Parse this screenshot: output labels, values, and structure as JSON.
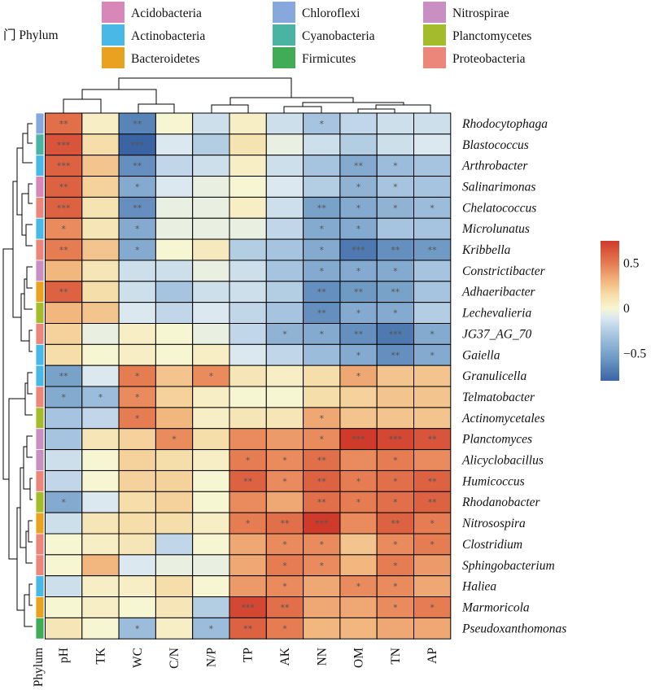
{
  "legend": {
    "title": "门 Phylum",
    "items": [
      {
        "label": "Acidobacteria",
        "color": "#d986b9"
      },
      {
        "label": "Actinobacteria",
        "color": "#48b9e6"
      },
      {
        "label": "Bacteroidetes",
        "color": "#e8a21f"
      },
      {
        "label": "Chloroflexi",
        "color": "#86a8dc"
      },
      {
        "label": "Cyanobacteria",
        "color": "#4bb3a2"
      },
      {
        "label": "Firmicutes",
        "color": "#42ab55"
      },
      {
        "label": "Nitrospirae",
        "color": "#c98fc0"
      },
      {
        "label": "Planctomycetes",
        "color": "#a4bc2b"
      },
      {
        "label": "Proteobacteria",
        "color": "#ec867b"
      }
    ]
  },
  "chart_data": {
    "type": "heatmap",
    "columns": [
      "pH",
      "TK",
      "WC",
      "C/N",
      "N/P",
      "TP",
      "AK",
      "NN",
      "OM",
      "TN",
      "AP"
    ],
    "annotation_column_label": "Phylum",
    "rows": [
      {
        "name": "Rhodocytophaga",
        "phylum": "Chloroflexi",
        "values": [
          0.55,
          0.05,
          -0.65,
          0.0,
          -0.15,
          0.05,
          -0.15,
          -0.3,
          -0.2,
          -0.15,
          -0.15
        ],
        "stars": [
          "**",
          "",
          "**",
          "",
          "",
          "",
          "",
          "*",
          "",
          "",
          ""
        ]
      },
      {
        "name": "Blastococcus",
        "phylum": "Cyanobacteria",
        "values": [
          0.65,
          0.15,
          -0.8,
          -0.1,
          -0.25,
          0.12,
          -0.05,
          -0.15,
          -0.25,
          -0.15,
          -0.1
        ],
        "stars": [
          "***",
          "",
          "***",
          "",
          "",
          "",
          "",
          "",
          "",
          "",
          ""
        ]
      },
      {
        "name": "Arthrobacter",
        "phylum": "Actinobacteria",
        "values": [
          0.6,
          0.25,
          -0.6,
          -0.2,
          -0.15,
          0.05,
          -0.15,
          -0.3,
          -0.45,
          -0.35,
          -0.3
        ],
        "stars": [
          "***",
          "",
          "**",
          "",
          "",
          "",
          "",
          "",
          "**",
          "*",
          ""
        ]
      },
      {
        "name": "Salinarimonas",
        "phylum": "Acidobacteria",
        "values": [
          0.6,
          0.2,
          -0.45,
          -0.1,
          -0.05,
          0.0,
          -0.1,
          -0.25,
          -0.4,
          -0.3,
          -0.3
        ],
        "stars": [
          "**",
          "",
          "*",
          "",
          "",
          "",
          "",
          "",
          "*",
          "*",
          ""
        ]
      },
      {
        "name": "Chelatococcus",
        "phylum": "Proteobacteria",
        "values": [
          0.6,
          0.12,
          -0.6,
          -0.05,
          -0.05,
          0.05,
          -0.15,
          -0.5,
          -0.45,
          -0.4,
          -0.35
        ],
        "stars": [
          "***",
          "",
          "**",
          "",
          "",
          "",
          "",
          "**",
          "*",
          "*",
          "*"
        ]
      },
      {
        "name": "Microlunatus",
        "phylum": "Actinobacteria",
        "values": [
          0.45,
          0.1,
          -0.45,
          -0.05,
          -0.05,
          -0.05,
          -0.2,
          -0.45,
          -0.45,
          -0.3,
          -0.3
        ],
        "stars": [
          "*",
          "",
          "*",
          "",
          "",
          "",
          "",
          "*",
          "*",
          "",
          ""
        ]
      },
      {
        "name": "Kribbella",
        "phylum": "Proteobacteria",
        "values": [
          0.5,
          0.25,
          -0.45,
          0.0,
          0.08,
          -0.25,
          -0.3,
          -0.45,
          -0.7,
          -0.6,
          -0.55
        ],
        "stars": [
          "**",
          "",
          "*",
          "",
          "",
          "",
          "",
          "*",
          "***",
          "**",
          "**"
        ]
      },
      {
        "name": "Constrictibacter",
        "phylum": "Nitrospirae",
        "values": [
          0.3,
          0.1,
          -0.15,
          -0.15,
          -0.05,
          -0.15,
          -0.3,
          -0.45,
          -0.45,
          -0.45,
          -0.3
        ],
        "stars": [
          "",
          "",
          "",
          "",
          "",
          "",
          "",
          "*",
          "*",
          "*",
          ""
        ]
      },
      {
        "name": "Adhaeribacter",
        "phylum": "Bacteroidetes",
        "values": [
          0.6,
          0.15,
          -0.15,
          -0.3,
          -0.15,
          -0.15,
          -0.25,
          -0.6,
          -0.55,
          -0.5,
          -0.3
        ],
        "stars": [
          "**",
          "",
          "",
          "",
          "",
          "",
          "",
          "**",
          "**",
          "**",
          ""
        ]
      },
      {
        "name": "Lechevalieria",
        "phylum": "Planctomycetes",
        "values": [
          0.3,
          0.25,
          -0.1,
          -0.2,
          -0.1,
          -0.2,
          -0.3,
          -0.6,
          -0.45,
          -0.45,
          -0.25
        ],
        "stars": [
          "",
          "",
          "",
          "",
          "",
          "",
          "",
          "**",
          "*",
          "*",
          ""
        ]
      },
      {
        "name": "JG37_AG_70",
        "phylum": "Proteobacteria",
        "values": [
          0.2,
          -0.05,
          0.05,
          0.0,
          -0.05,
          -0.2,
          -0.4,
          -0.45,
          -0.6,
          -0.7,
          -0.45
        ],
        "stars": [
          "",
          "",
          "",
          "",
          "",
          "",
          "*",
          "*",
          "**",
          "***",
          "*"
        ]
      },
      {
        "name": "Gaiella",
        "phylum": "Actinobacteria",
        "values": [
          0.15,
          0.0,
          0.05,
          0.0,
          0.05,
          -0.1,
          -0.2,
          -0.35,
          -0.45,
          -0.6,
          -0.45
        ],
        "stars": [
          "",
          "",
          "",
          "",
          "",
          "",
          "",
          "",
          "*",
          "**",
          "*"
        ]
      },
      {
        "name": "Granulicella",
        "phylum": "Actinobacteria",
        "values": [
          -0.5,
          -0.1,
          0.5,
          0.25,
          0.45,
          0.1,
          0.05,
          0.15,
          0.35,
          0.25,
          0.25
        ],
        "stars": [
          "**",
          "",
          "*",
          "",
          "*",
          "",
          "",
          "",
          "*",
          "",
          ""
        ]
      },
      {
        "name": "Telmatobacter",
        "phylum": "Proteobacteria",
        "values": [
          -0.45,
          -0.35,
          0.45,
          0.2,
          0.05,
          0.0,
          0.0,
          0.15,
          0.2,
          0.25,
          0.25
        ],
        "stars": [
          "*",
          "*",
          "*",
          "",
          "",
          "",
          "",
          "",
          "",
          "",
          ""
        ]
      },
      {
        "name": "Actinomycetales",
        "phylum": "Planctomycetes",
        "values": [
          -0.3,
          -0.2,
          0.5,
          0.3,
          0.05,
          0.1,
          0.1,
          0.35,
          0.25,
          0.25,
          0.25
        ],
        "stars": [
          "",
          "",
          "*",
          "",
          "",
          "",
          "",
          "*",
          "",
          "",
          ""
        ]
      },
      {
        "name": "Planctomyces",
        "phylum": "Nitrospirae",
        "values": [
          -0.3,
          0.1,
          0.2,
          0.45,
          0.15,
          0.45,
          0.4,
          0.45,
          0.75,
          0.7,
          0.65
        ],
        "stars": [
          "",
          "",
          "",
          "*",
          "",
          "",
          "",
          "*",
          "***",
          "***",
          "**"
        ]
      },
      {
        "name": "Alicyclobacillus",
        "phylum": "Nitrospirae",
        "values": [
          -0.15,
          0.0,
          0.2,
          0.15,
          0.05,
          0.5,
          0.45,
          0.55,
          0.45,
          0.5,
          0.45
        ],
        "stars": [
          "",
          "",
          "",
          "",
          "",
          "*",
          "*",
          "**",
          "",
          "*",
          ""
        ]
      },
      {
        "name": "Humicoccus",
        "phylum": "Proteobacteria",
        "values": [
          -0.2,
          0.0,
          0.2,
          0.2,
          0.0,
          0.6,
          0.45,
          0.6,
          0.5,
          0.55,
          0.6
        ],
        "stars": [
          "",
          "",
          "",
          "",
          "",
          "**",
          "*",
          "**",
          "*",
          "*",
          "**"
        ]
      },
      {
        "name": "Rhodanobacter",
        "phylum": "Planctomycetes",
        "values": [
          -0.45,
          -0.1,
          0.15,
          0.2,
          0.0,
          0.45,
          0.35,
          0.55,
          0.5,
          0.55,
          0.6
        ],
        "stars": [
          "*",
          "",
          "",
          "",
          "",
          "",
          "",
          "**",
          "*",
          "*",
          "**"
        ]
      },
      {
        "name": "Nitrosospira",
        "phylum": "Bacteroidetes",
        "values": [
          -0.15,
          0.1,
          0.15,
          0.15,
          0.05,
          0.5,
          0.55,
          0.75,
          0.45,
          0.6,
          0.5
        ],
        "stars": [
          "",
          "",
          "",
          "",
          "",
          "*",
          "**",
          "***",
          "",
          "**",
          "*"
        ]
      },
      {
        "name": "Clostridium",
        "phylum": "Proteobacteria",
        "values": [
          0.0,
          0.05,
          0.1,
          -0.2,
          0.0,
          0.35,
          0.45,
          0.45,
          0.25,
          0.45,
          0.5
        ],
        "stars": [
          "",
          "",
          "",
          "",
          "",
          "",
          "*",
          "*",
          "",
          "*",
          "*"
        ]
      },
      {
        "name": "Sphingobacterium",
        "phylum": "Proteobacteria",
        "values": [
          0.0,
          0.3,
          -0.1,
          -0.05,
          -0.05,
          0.35,
          0.5,
          0.45,
          0.3,
          0.5,
          0.4
        ],
        "stars": [
          "",
          "",
          "",
          "",
          "",
          "",
          "*",
          "*",
          "",
          "*",
          ""
        ]
      },
      {
        "name": "Haliea",
        "phylum": "Actinobacteria",
        "values": [
          -0.15,
          0.05,
          0.05,
          0.15,
          0.0,
          0.4,
          0.45,
          0.35,
          0.45,
          0.45,
          0.35
        ],
        "stars": [
          "",
          "",
          "",
          "",
          "",
          "",
          "*",
          "",
          "*",
          "*",
          ""
        ]
      },
      {
        "name": "Marmoricola",
        "phylum": "Bacteroidetes",
        "values": [
          0.0,
          0.05,
          0.0,
          0.1,
          -0.25,
          0.7,
          0.55,
          0.35,
          0.35,
          0.45,
          0.5
        ],
        "stars": [
          "",
          "",
          "",
          "",
          "",
          "***",
          "**",
          "",
          "",
          "*",
          "*"
        ]
      },
      {
        "name": "Pseudoxanthomonas",
        "phylum": "Firmicutes",
        "values": [
          0.1,
          0.0,
          -0.35,
          0.05,
          -0.35,
          0.6,
          0.5,
          0.3,
          0.3,
          0.35,
          0.35
        ],
        "stars": [
          "",
          "",
          "*",
          "",
          "*",
          "**",
          "*",
          "",
          "",
          "",
          ""
        ]
      }
    ],
    "color_scale": {
      "min": -0.8,
      "max": 0.75,
      "stops": [
        {
          "v": -0.8,
          "c": "#3a64a4"
        },
        {
          "v": -0.55,
          "c": "#6e9ac4"
        },
        {
          "v": -0.3,
          "c": "#a6c4df"
        },
        {
          "v": -0.1,
          "c": "#dbe8f0"
        },
        {
          "v": 0.0,
          "c": "#f7f6d2"
        },
        {
          "v": 0.15,
          "c": "#f6deaa"
        },
        {
          "v": 0.3,
          "c": "#f2b77f"
        },
        {
          "v": 0.5,
          "c": "#e67c52"
        },
        {
          "v": 0.75,
          "c": "#cf3a2b"
        }
      ],
      "ticks": [
        {
          "v": 0.5,
          "label": "0.5"
        },
        {
          "v": 0.0,
          "label": "0"
        },
        {
          "v": -0.5,
          "label": "−0.5"
        }
      ]
    }
  }
}
